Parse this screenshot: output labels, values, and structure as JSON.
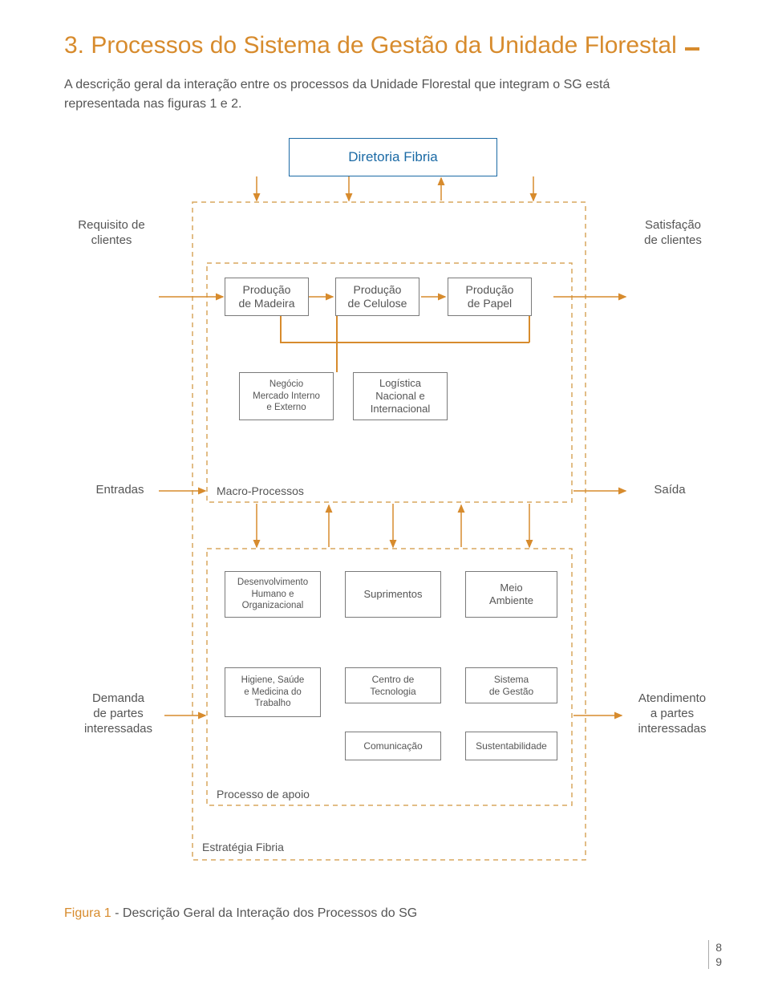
{
  "colors": {
    "orange": "#d78b2d",
    "title": "#d78b2d",
    "text": "#555555",
    "border": "#7a7a7a",
    "dashed": "#d9a75e"
  },
  "title": "3. Processos do Sistema de Gestão da Unidade Florestal",
  "intro": "A descrição geral da interação entre os processos da Unidade Florestal que integram o SG está representada nas figuras 1 e 2.",
  "top_box": "Diretoria Fibria",
  "left_top": "Requisito de\nclientes",
  "right_top": "Satisfação\nde clientes",
  "row1": [
    "Produção\nde Madeira",
    "Produção\nde Celulose",
    "Produção\nde Papel"
  ],
  "row2": [
    "Negócio\nMercado Interno\ne Externo",
    "Logística\nNacional e\nInternacional"
  ],
  "left_mid": "Entradas",
  "right_mid": "Saída",
  "macro_label": "Macro-Processos",
  "row3": [
    "Desenvolvimento\nHumano e\nOrganizacional",
    "Suprimentos",
    "Meio\nAmbiente"
  ],
  "row4": [
    "Higiene, Saúde\ne Medicina do\nTrabalho",
    "Centro de\nTecnologia",
    "Sistema\nde Gestão"
  ],
  "row4b": [
    "Comunicação",
    "Sustentabilidade"
  ],
  "left_bot": "Demanda\nde partes\ninteressadas",
  "right_bot": "Atendimento\na partes\ninteressadas",
  "apoio_label": "Processo de apoio",
  "estrategia_label": "Estratégia Fibria",
  "caption_label": "Figura 1",
  "caption_rest": " - Descrição Geral da Interação dos Processos do SG",
  "page_a": "8",
  "page_b": "9"
}
